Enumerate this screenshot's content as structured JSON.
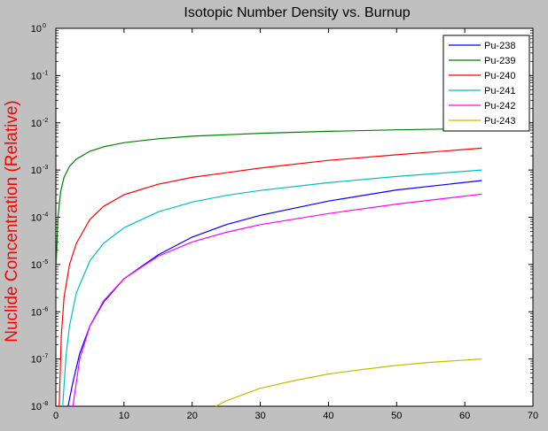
{
  "chart_data": {
    "type": "line",
    "title": "Isotopic Number Density vs. Burnup",
    "xlabel": "",
    "ylabel": "Nuclide Concentration (Relative)",
    "y_scale": "log",
    "xlim": [
      0,
      70
    ],
    "ylim": [
      1e-08,
      1
    ],
    "x_ticks": [
      "0",
      "10",
      "20",
      "30",
      "40",
      "50",
      "60",
      "70"
    ],
    "y_ticks": [
      {
        "base": "10",
        "exp": "0"
      },
      {
        "base": "10",
        "exp": "-1"
      },
      {
        "base": "10",
        "exp": "-2"
      },
      {
        "base": "10",
        "exp": "-3"
      },
      {
        "base": "10",
        "exp": "-4"
      },
      {
        "base": "10",
        "exp": "-5"
      },
      {
        "base": "10",
        "exp": "-6"
      },
      {
        "base": "10",
        "exp": "-7"
      },
      {
        "base": "10",
        "exp": "-8"
      }
    ],
    "grid": false,
    "legend_position": "top-right",
    "series": [
      {
        "name": "Pu-238",
        "color": "#0000ff",
        "x": [
          1.8,
          2.5,
          3.5,
          5,
          7,
          10,
          15,
          20,
          25,
          30,
          40,
          50,
          62.5
        ],
        "y": [
          1e-08,
          3.2e-08,
          1.3e-07,
          5e-07,
          1.6e-06,
          5e-06,
          1.6e-05,
          3.8e-05,
          7e-05,
          0.00011,
          0.00022,
          0.00038,
          0.0006
        ]
      },
      {
        "name": "Pu-239",
        "color": "#008000",
        "x": [
          0.05,
          0.3,
          0.7,
          1.2,
          2,
          3,
          5,
          7,
          10,
          15,
          20,
          30,
          40,
          50,
          62.5
        ],
        "y": [
          1e-05,
          0.0001,
          0.00035,
          0.0007,
          0.0012,
          0.0017,
          0.0025,
          0.0031,
          0.0038,
          0.0046,
          0.0052,
          0.006,
          0.0066,
          0.0071,
          0.0076
        ]
      },
      {
        "name": "Pu-240",
        "color": "#ff0000",
        "x": [
          0.5,
          0.8,
          1.2,
          2,
          3,
          5,
          7,
          10,
          15,
          20,
          30,
          40,
          50,
          62.5
        ],
        "y": [
          1e-08,
          3e-07,
          2e-06,
          1e-05,
          2.8e-05,
          9e-05,
          0.00017,
          0.0003,
          0.0005,
          0.0007,
          0.0011,
          0.0016,
          0.0021,
          0.0029
        ]
      },
      {
        "name": "Pu-241",
        "color": "#00bfbf",
        "x": [
          1,
          1.5,
          2,
          3,
          5,
          7,
          10,
          15,
          20,
          25,
          30,
          40,
          50,
          62.5
        ],
        "y": [
          1e-08,
          1.2e-07,
          5e-07,
          2.5e-06,
          1.2e-05,
          2.8e-05,
          6e-05,
          0.00013,
          0.00021,
          0.00029,
          0.00037,
          0.00054,
          0.00073,
          0.001
        ]
      },
      {
        "name": "Pu-242",
        "color": "#ff00ff",
        "x": [
          2.5,
          3.5,
          5,
          7,
          10,
          15,
          20,
          25,
          30,
          40,
          50,
          62.5
        ],
        "y": [
          1e-08,
          1e-07,
          5e-07,
          1.7e-06,
          5e-06,
          1.5e-05,
          3e-05,
          4.8e-05,
          7e-05,
          0.00012,
          0.00019,
          0.00031
        ]
      },
      {
        "name": "Pu-243",
        "color": "#bfbf00",
        "x": [
          23.5,
          25,
          30,
          35,
          40,
          45,
          50,
          55,
          62.5
        ],
        "y": [
          1e-08,
          1.3e-08,
          2.4e-08,
          3.5e-08,
          4.8e-08,
          6e-08,
          7.3e-08,
          8.5e-08,
          1e-07
        ]
      }
    ]
  }
}
